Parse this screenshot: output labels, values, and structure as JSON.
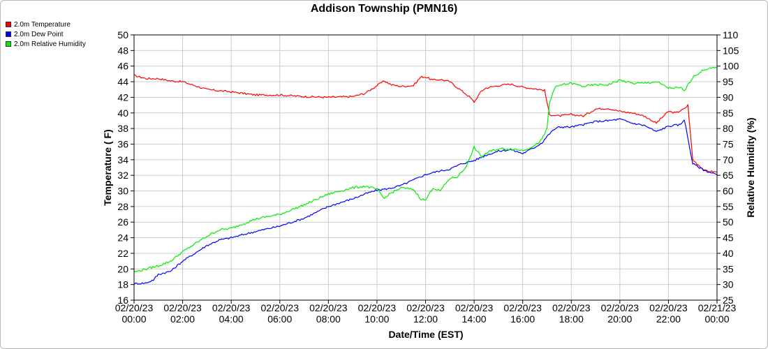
{
  "chart_data": {
    "type": "line",
    "title": "Addison Township (PMN16)",
    "xlabel": "Date/Time (EST)",
    "ylabel_left": "Temperature ( F)",
    "ylabel_right": "Relative Humidity (%)",
    "ylim_left": [
      16,
      50
    ],
    "ylim_right": [
      25,
      110
    ],
    "y_ticks_left": [
      16,
      18,
      20,
      22,
      24,
      26,
      28,
      30,
      32,
      34,
      36,
      38,
      40,
      42,
      44,
      46,
      48,
      50
    ],
    "y_ticks_right": [
      25,
      30,
      35,
      40,
      45,
      50,
      55,
      60,
      65,
      70,
      75,
      80,
      85,
      90,
      95,
      100,
      105,
      110
    ],
    "x_range_hours": [
      0,
      24
    ],
    "x_ticks": [
      {
        "date": "02/20/23",
        "time": "00:00"
      },
      {
        "date": "02/20/23",
        "time": "02:00"
      },
      {
        "date": "02/20/23",
        "time": "04:00"
      },
      {
        "date": "02/20/23",
        "time": "06:00"
      },
      {
        "date": "02/20/23",
        "time": "08:00"
      },
      {
        "date": "02/20/23",
        "time": "10:00"
      },
      {
        "date": "02/20/23",
        "time": "12:00"
      },
      {
        "date": "02/20/23",
        "time": "14:00"
      },
      {
        "date": "02/20/23",
        "time": "16:00"
      },
      {
        "date": "02/20/23",
        "time": "18:00"
      },
      {
        "date": "02/20/23",
        "time": "20:00"
      },
      {
        "date": "02/20/23",
        "time": "22:00"
      },
      {
        "date": "02/21/23",
        "time": "00:00"
      }
    ],
    "grid": true,
    "legend_position": "top-left",
    "series": [
      {
        "name": "2.0m Temperature",
        "color": "#ff0000",
        "axis": "left",
        "x": [
          0,
          0.5,
          1,
          1.5,
          2,
          2.5,
          3,
          4,
          5,
          6,
          7,
          8,
          9,
          9.5,
          10,
          10.3,
          10.6,
          11,
          11.5,
          11.8,
          12,
          12.3,
          12.6,
          13,
          13.5,
          13.8,
          14,
          14.3,
          14.5,
          15,
          15.5,
          16,
          16.5,
          16.9,
          17.1,
          17.5,
          18,
          18.5,
          19,
          19.5,
          20,
          20.5,
          20.8,
          21,
          21.5,
          22,
          22.3,
          22.5,
          22.65,
          22.8,
          23,
          23.5,
          24
        ],
        "values": [
          44.8,
          44.4,
          44.4,
          44.1,
          44.0,
          43.5,
          43.0,
          42.7,
          42.3,
          42.3,
          42.1,
          42.0,
          42.1,
          42.5,
          43.5,
          44.1,
          43.6,
          43.4,
          43.5,
          44.6,
          44.6,
          44.2,
          44.3,
          44.0,
          42.8,
          42.1,
          41.4,
          42.8,
          43.2,
          43.5,
          43.7,
          43.3,
          43.1,
          42.9,
          39.8,
          39.6,
          39.8,
          39.6,
          40.5,
          40.6,
          40.2,
          40.0,
          39.8,
          39.6,
          38.7,
          40.2,
          40.0,
          40.3,
          40.5,
          41.0,
          34.0,
          32.6,
          32.4
        ]
      },
      {
        "name": "2.0m Dew Point",
        "color": "#0000ff",
        "axis": "left",
        "x": [
          0,
          0.5,
          0.8,
          1,
          1.5,
          2,
          2.5,
          3,
          3.5,
          4,
          5,
          6,
          7,
          8,
          9,
          9.5,
          10,
          10.5,
          11,
          11.5,
          12,
          12.5,
          13,
          13.5,
          14,
          14.5,
          15,
          15.5,
          16,
          16.5,
          16.8,
          17,
          17.3,
          17.5,
          18,
          18.5,
          19,
          19.5,
          20,
          20.5,
          21,
          21.5,
          22,
          22.5,
          22.65,
          23,
          23.5,
          24
        ],
        "values": [
          18.1,
          18.2,
          18.6,
          19.3,
          19.7,
          21.0,
          22.0,
          23.0,
          23.7,
          24.0,
          24.8,
          25.5,
          26.5,
          28.0,
          29.0,
          29.6,
          30.1,
          30.3,
          30.7,
          31.4,
          32.1,
          32.5,
          32.8,
          33.5,
          33.9,
          34.6,
          35.1,
          35.3,
          34.8,
          35.6,
          36.2,
          37.0,
          37.9,
          38.2,
          38.2,
          38.5,
          38.9,
          39.0,
          39.2,
          38.7,
          38.4,
          37.6,
          38.3,
          38.5,
          39.2,
          33.5,
          32.6,
          32.1
        ]
      },
      {
        "name": "2.0m Relative Humidity",
        "color": "#00ee00",
        "axis": "right",
        "x": [
          0,
          0.5,
          1,
          1.5,
          2,
          2.5,
          3,
          3.5,
          4,
          5,
          6,
          7,
          8,
          9,
          9.5,
          9.8,
          10,
          10.3,
          10.5,
          11,
          11.5,
          11.8,
          12,
          12.3,
          12.6,
          13,
          13.3,
          13.6,
          13.8,
          14,
          14.3,
          14.6,
          15,
          15.5,
          16,
          16.5,
          16.8,
          17,
          17.1,
          17.3,
          17.6,
          18,
          18.5,
          19,
          19.5,
          20,
          20.5,
          21,
          21.5,
          22,
          22.5,
          22.65,
          23,
          23.5,
          24
        ],
        "values": [
          34.0,
          35.0,
          36.0,
          37.5,
          40.5,
          43.0,
          45.5,
          47.5,
          48.0,
          51.0,
          52.5,
          55.5,
          59.0,
          61.0,
          61.5,
          61.0,
          60.5,
          57.5,
          59.0,
          61.0,
          60.5,
          57.5,
          57.0,
          61.0,
          60.0,
          64.0,
          64.5,
          67.0,
          70.0,
          74.0,
          71.0,
          72.5,
          73.5,
          73.5,
          73.0,
          74.5,
          76.5,
          80.0,
          88.0,
          93.0,
          94.0,
          94.5,
          93.5,
          94.0,
          94.0,
          95.5,
          94.5,
          94.5,
          95.0,
          93.0,
          93.0,
          92.0,
          96.5,
          99.0,
          99.5
        ]
      }
    ]
  }
}
